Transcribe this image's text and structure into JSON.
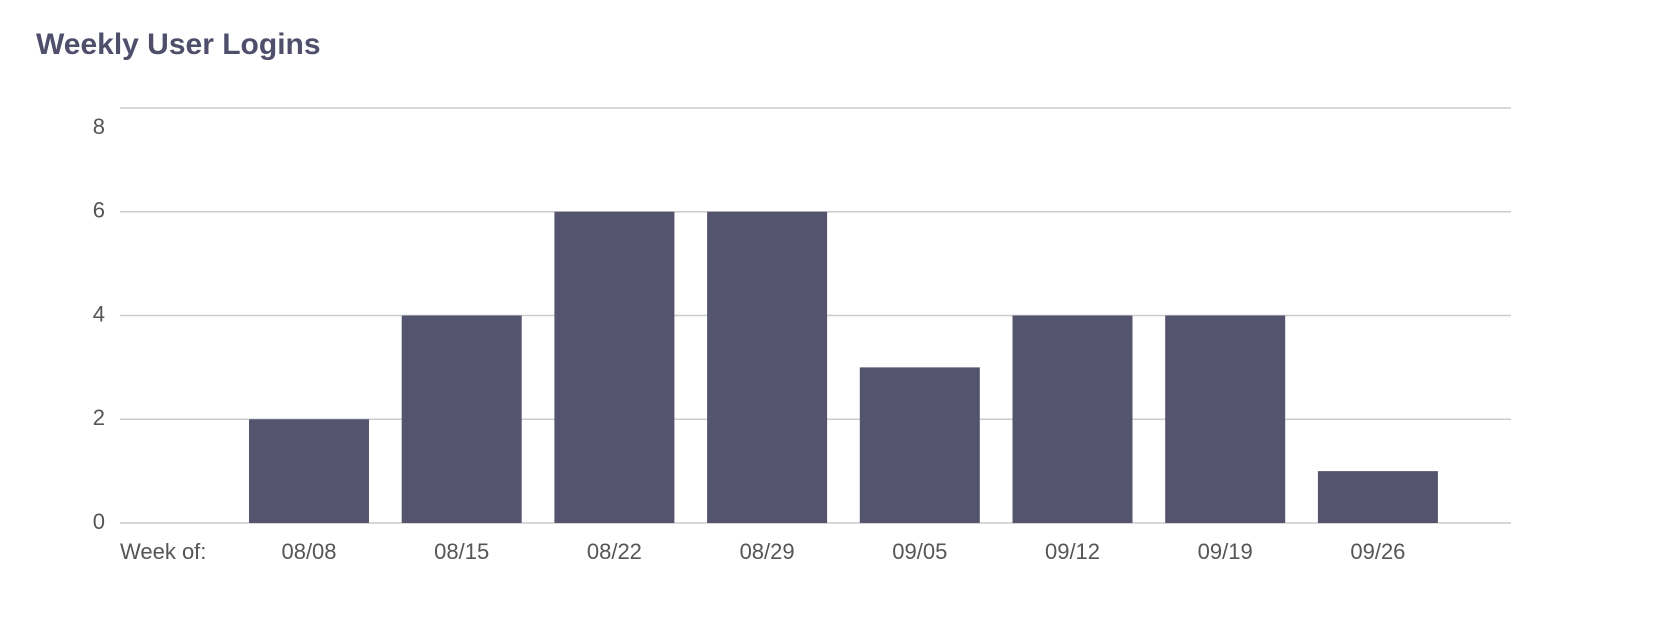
{
  "chart_data": {
    "type": "bar",
    "title": "Weekly User Logins",
    "x_label": "Week of:",
    "categories": [
      "08/08",
      "08/15",
      "08/22",
      "08/29",
      "09/05",
      "09/12",
      "09/19",
      "09/26"
    ],
    "values": [
      2,
      4,
      6,
      6,
      3,
      4,
      4,
      1
    ],
    "color": "#55546f",
    "ylim": [
      0,
      8
    ],
    "yticks": [
      0,
      2,
      4,
      6,
      8
    ],
    "grid": true
  }
}
